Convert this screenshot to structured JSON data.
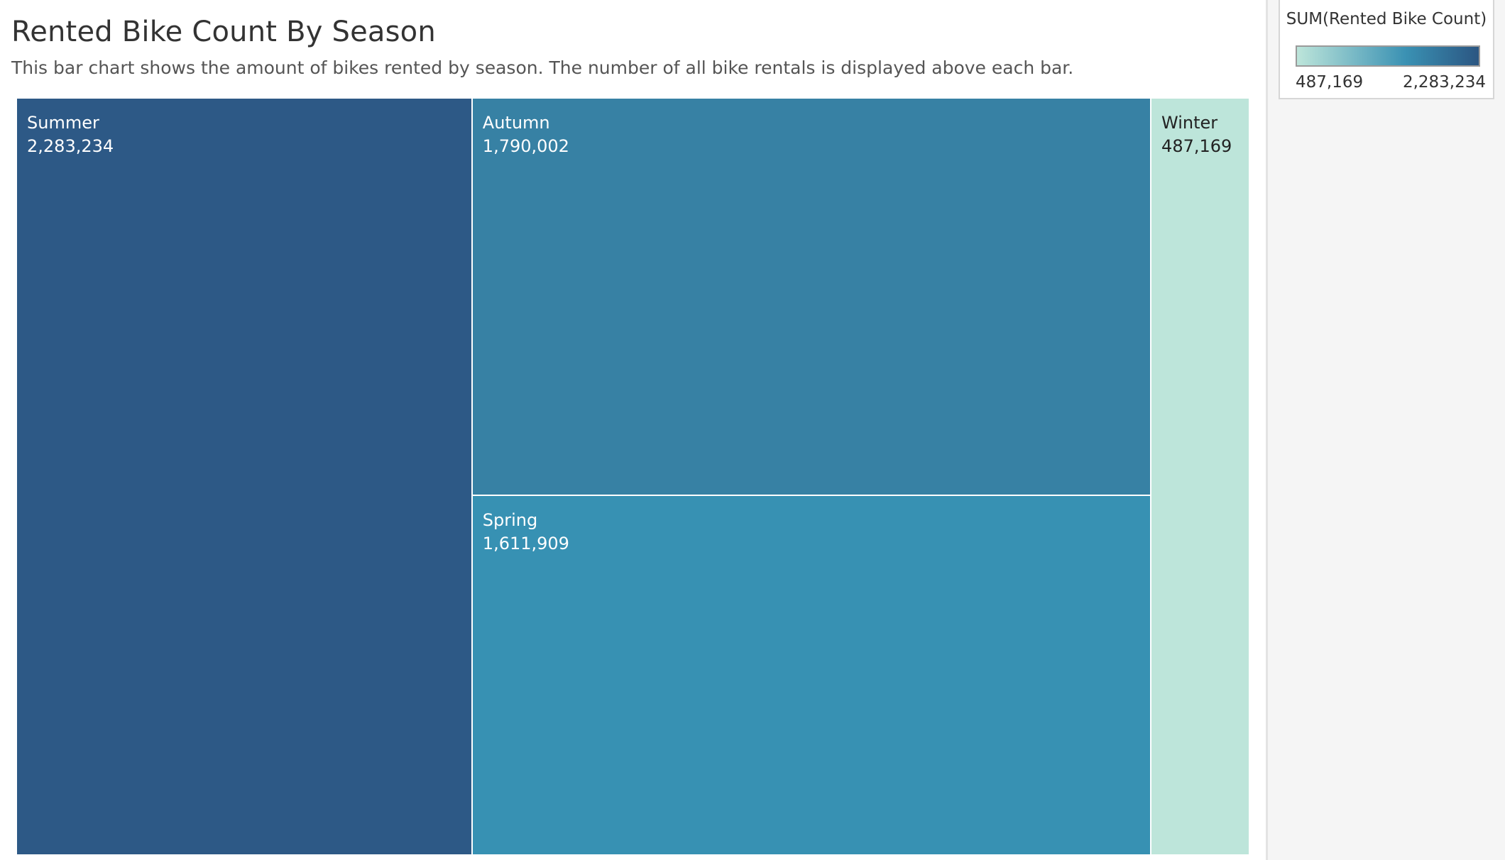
{
  "header": {
    "title": "Rented Bike Count By Season",
    "subtitle": "This bar chart shows the amount of bikes rented by season. The number of all bike rentals is displayed above each bar."
  },
  "legend": {
    "title": "SUM(Rented Bike Count)",
    "min_label": "487,169",
    "max_label": "2,283,234",
    "color_low": "#bde5da",
    "color_mid": "#3a91b3",
    "color_high": "#2b5682"
  },
  "chart_data": {
    "type": "treemap",
    "title": "Rented Bike Count By Season",
    "subtitle": "This bar chart shows the amount of bikes rented by season. The number of all bike rentals is displayed above each bar.",
    "measure": "SUM(Rented Bike Count)",
    "categories": [
      "Summer",
      "Autumn",
      "Spring",
      "Winter"
    ],
    "values": [
      2283234,
      1790002,
      1611909,
      487169
    ],
    "value_labels": [
      "2,283,234",
      "1,790,002",
      "1,611,909",
      "487,169"
    ],
    "colors": [
      "#2d5986",
      "#3781a4",
      "#3791b3",
      "#bde5da"
    ],
    "label_colors": [
      "#ffffff",
      "#ffffff",
      "#ffffff",
      "#222222"
    ],
    "color_range": [
      487169,
      2283234
    ]
  }
}
